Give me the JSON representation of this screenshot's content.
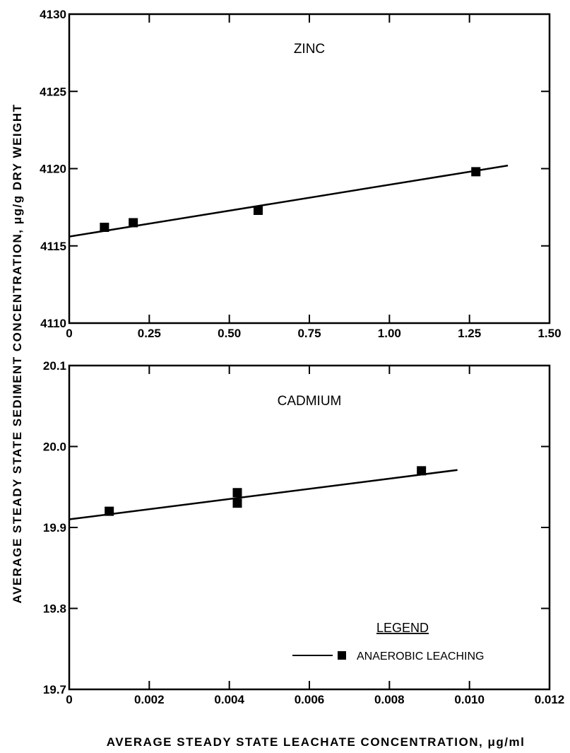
{
  "chart_data": [
    {
      "type": "scatter",
      "title": "ZINC",
      "xlim": [
        0,
        1.5
      ],
      "ylim": [
        4110,
        4130
      ],
      "x_ticks": [
        "0",
        "0.25",
        "0.50",
        "0.75",
        "1.00",
        "1.25",
        "1.50"
      ],
      "y_ticks": [
        "4110",
        "4115",
        "4120",
        "4125",
        "4130"
      ],
      "series": [
        {
          "points": [
            [
              0.11,
              4116.2
            ],
            [
              0.2,
              4116.5
            ],
            [
              0.59,
              4117.3
            ],
            [
              1.27,
              4119.8
            ]
          ],
          "fit_line": [
            [
              0,
              4115.6
            ],
            [
              1.37,
              4120.2
            ]
          ]
        }
      ],
      "grid": false
    },
    {
      "type": "scatter",
      "title": "CADMIUM",
      "xlim": [
        0,
        0.012
      ],
      "ylim": [
        19.7,
        20.1
      ],
      "x_ticks": [
        "0",
        "0.002",
        "0.004",
        "0.006",
        "0.008",
        "0.010",
        "0.012"
      ],
      "y_ticks": [
        "19.7",
        "19.8",
        "19.9",
        "20.0",
        "20.1"
      ],
      "series": [
        {
          "points": [
            [
              0.001,
              19.92
            ],
            [
              0.0042,
              19.943
            ],
            [
              0.0042,
              19.93
            ],
            [
              0.0088,
              19.97
            ]
          ],
          "fit_line": [
            [
              0,
              19.91
            ],
            [
              0.0097,
              19.971
            ]
          ]
        }
      ],
      "grid": false,
      "legend": {
        "title": "LEGEND",
        "entry": "ANAEROBIC LEACHING",
        "placement": "bottom-right"
      }
    }
  ],
  "shared_ylabel": "AVERAGE STEADY STATE SEDIMENT CONCENTRATION, μg/g DRY WEIGHT",
  "shared_xlabel": "AVERAGE STEADY STATE LEACHATE CONCENTRATION, μg/ml"
}
